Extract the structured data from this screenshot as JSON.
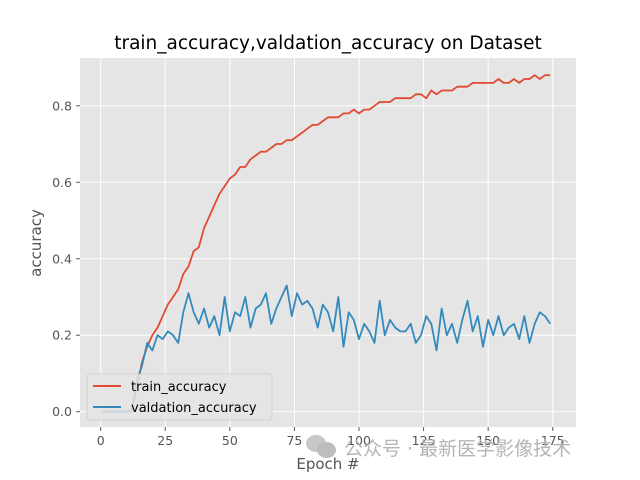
{
  "chart_data": {
    "type": "line",
    "title": "train_accuracy,valdation_accuracy on Dataset",
    "xlabel": "Epoch #",
    "ylabel": "accuracy",
    "xlim": [
      -8,
      184
    ],
    "ylim": [
      -0.04,
      0.925
    ],
    "xticks": [
      0,
      25,
      50,
      75,
      100,
      125,
      150,
      175
    ],
    "yticks": [
      0.0,
      0.2,
      0.4,
      0.6,
      0.8
    ],
    "grid": true,
    "legend": "lower-left",
    "series": [
      {
        "name": "train_accuracy",
        "color": "#E24A33",
        "x": [
          0,
          3,
          6,
          9,
          12,
          14,
          16,
          18,
          20,
          22,
          24,
          26,
          28,
          30,
          32,
          34,
          36,
          38,
          40,
          42,
          44,
          46,
          48,
          50,
          52,
          54,
          56,
          58,
          60,
          62,
          64,
          66,
          68,
          70,
          72,
          74,
          76,
          78,
          80,
          82,
          84,
          86,
          88,
          90,
          92,
          94,
          96,
          98,
          100,
          102,
          104,
          106,
          108,
          110,
          112,
          114,
          116,
          118,
          120,
          122,
          124,
          126,
          128,
          130,
          132,
          134,
          136,
          138,
          140,
          142,
          144,
          146,
          148,
          150,
          152,
          154,
          156,
          158,
          160,
          162,
          164,
          166,
          168,
          170,
          172,
          174
        ],
        "values": [
          0.0,
          0.0,
          0.0,
          0.0,
          0.005,
          0.06,
          0.13,
          0.17,
          0.2,
          0.22,
          0.25,
          0.28,
          0.3,
          0.32,
          0.36,
          0.38,
          0.42,
          0.43,
          0.48,
          0.51,
          0.54,
          0.57,
          0.59,
          0.61,
          0.62,
          0.64,
          0.64,
          0.66,
          0.67,
          0.68,
          0.68,
          0.69,
          0.7,
          0.7,
          0.71,
          0.71,
          0.72,
          0.73,
          0.74,
          0.75,
          0.75,
          0.76,
          0.77,
          0.77,
          0.77,
          0.78,
          0.78,
          0.79,
          0.78,
          0.79,
          0.79,
          0.8,
          0.81,
          0.81,
          0.81,
          0.82,
          0.82,
          0.82,
          0.82,
          0.83,
          0.83,
          0.82,
          0.84,
          0.83,
          0.84,
          0.84,
          0.84,
          0.85,
          0.85,
          0.85,
          0.86,
          0.86,
          0.86,
          0.86,
          0.86,
          0.87,
          0.86,
          0.86,
          0.87,
          0.86,
          0.87,
          0.87,
          0.88,
          0.87,
          0.88,
          0.88
        ]
      },
      {
        "name": "valdation_accuracy",
        "color": "#348ABD",
        "x": [
          0,
          3,
          6,
          9,
          12,
          14,
          16,
          18,
          20,
          22,
          24,
          26,
          28,
          30,
          32,
          34,
          36,
          38,
          40,
          42,
          44,
          46,
          48,
          50,
          52,
          54,
          56,
          58,
          60,
          62,
          64,
          66,
          68,
          70,
          72,
          74,
          76,
          78,
          80,
          82,
          84,
          86,
          88,
          90,
          92,
          94,
          96,
          98,
          100,
          102,
          104,
          106,
          108,
          110,
          112,
          114,
          116,
          118,
          120,
          122,
          124,
          126,
          128,
          130,
          132,
          134,
          136,
          138,
          140,
          142,
          144,
          146,
          148,
          150,
          152,
          154,
          156,
          158,
          160,
          162,
          164,
          166,
          168,
          170,
          172,
          174
        ],
        "values": [
          0.0,
          0.0,
          0.0,
          0.0,
          0.0,
          0.08,
          0.12,
          0.18,
          0.16,
          0.2,
          0.19,
          0.21,
          0.2,
          0.18,
          0.26,
          0.31,
          0.26,
          0.23,
          0.27,
          0.22,
          0.25,
          0.2,
          0.3,
          0.21,
          0.26,
          0.25,
          0.3,
          0.22,
          0.27,
          0.28,
          0.31,
          0.23,
          0.27,
          0.3,
          0.33,
          0.25,
          0.31,
          0.28,
          0.29,
          0.27,
          0.22,
          0.28,
          0.26,
          0.21,
          0.3,
          0.17,
          0.26,
          0.24,
          0.19,
          0.23,
          0.21,
          0.18,
          0.29,
          0.2,
          0.24,
          0.22,
          0.21,
          0.21,
          0.23,
          0.18,
          0.2,
          0.25,
          0.23,
          0.16,
          0.27,
          0.2,
          0.23,
          0.18,
          0.24,
          0.29,
          0.21,
          0.25,
          0.17,
          0.24,
          0.2,
          0.25,
          0.2,
          0.22,
          0.23,
          0.19,
          0.25,
          0.18,
          0.23,
          0.26,
          0.25,
          0.23
        ]
      }
    ]
  },
  "watermark": {
    "text": "公众号 · 最新医学影像技术"
  }
}
